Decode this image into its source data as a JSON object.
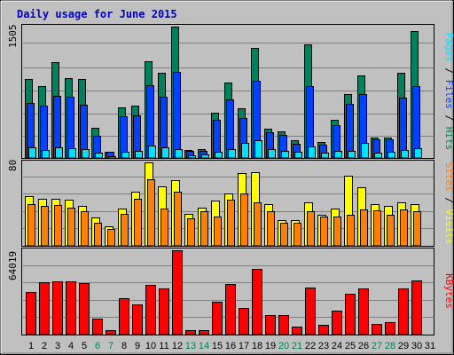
{
  "chart_title": "Daily usage for June 2015",
  "colors": {
    "background": "#c0c0c0",
    "plot_bg": "#c0c0c0",
    "title": "#0000cc",
    "hits": "#00805c",
    "files": "#0040ff",
    "pages": "#00e0ff",
    "visits": "#ffff00",
    "sites": "#ff8000",
    "kbytes": "#ff0000",
    "weekday_label": "#000000",
    "weekend_label": "#00805c"
  },
  "panels": {
    "top": {
      "max_label": "1505",
      "right_labels": [
        {
          "text": "Pages",
          "color": "#00e0ff"
        },
        {
          "text": "Files",
          "color": "#0040ff"
        },
        {
          "text": "Hits",
          "color": "#00805c"
        }
      ],
      "separator": " / "
    },
    "middle": {
      "max_label": "80",
      "right_labels": [
        {
          "text": "Sites",
          "color": "#ff8000"
        },
        {
          "text": "Visits",
          "color": "#ffff00"
        }
      ],
      "separator": " / "
    },
    "bottom": {
      "max_label": "64019",
      "right_labels": [
        {
          "text": "KBytes",
          "color": "#ff0000"
        }
      ],
      "separator": ""
    }
  },
  "chart_data": [
    {
      "type": "bar",
      "categories": [
        "1",
        "2",
        "3",
        "4",
        "5",
        "6",
        "7",
        "8",
        "9",
        "10",
        "11",
        "12",
        "13",
        "14",
        "15",
        "16",
        "17",
        "18",
        "19",
        "20",
        "21",
        "22",
        "23",
        "24",
        "25",
        "26",
        "27",
        "28",
        "29",
        "30",
        "31"
      ],
      "weekend_days": [
        "6",
        "7",
        "13",
        "14",
        "20",
        "21",
        "27",
        "28"
      ],
      "ylim": [
        0,
        1505
      ],
      "series": [
        {
          "name": "Hits",
          "values": [
            910,
            820,
            1100,
            920,
            900,
            350,
            70,
            580,
            600,
            1110,
            980,
            1505,
            90,
            100,
            520,
            860,
            570,
            1260,
            340,
            300,
            200,
            1300,
            180,
            440,
            730,
            950,
            230,
            230,
            980,
            1450,
            0
          ]
        },
        {
          "name": "Files",
          "values": [
            630,
            600,
            710,
            700,
            610,
            250,
            70,
            480,
            490,
            830,
            700,
            990,
            80,
            80,
            440,
            670,
            460,
            880,
            290,
            260,
            160,
            820,
            150,
            380,
            620,
            730,
            210,
            210,
            690,
            820,
            0
          ]
        },
        {
          "name": "Pages",
          "values": [
            120,
            95,
            125,
            115,
            100,
            60,
            20,
            70,
            80,
            145,
            120,
            100,
            30,
            40,
            70,
            100,
            170,
            200,
            100,
            80,
            70,
            130,
            65,
            85,
            80,
            170,
            60,
            70,
            95,
            110,
            0
          ]
        }
      ]
    },
    {
      "type": "bar",
      "categories": [
        "1",
        "2",
        "3",
        "4",
        "5",
        "6",
        "7",
        "8",
        "9",
        "10",
        "11",
        "12",
        "13",
        "14",
        "15",
        "16",
        "17",
        "18",
        "19",
        "20",
        "21",
        "22",
        "23",
        "24",
        "25",
        "26",
        "27",
        "28",
        "29",
        "30",
        "31"
      ],
      "weekend_days": [
        "6",
        "7",
        "13",
        "14",
        "20",
        "21",
        "27",
        "28"
      ],
      "ylim": [
        0,
        80
      ],
      "series": [
        {
          "name": "Visits",
          "values": [
            48,
            45,
            45,
            44,
            38,
            27,
            19,
            36,
            52,
            80,
            57,
            63,
            31,
            37,
            43,
            50,
            70,
            71,
            40,
            25,
            25,
            42,
            30,
            36,
            67,
            56,
            40,
            38,
            42,
            40,
            0
          ]
        },
        {
          "name": "Sites",
          "values": [
            40,
            38,
            39,
            37,
            33,
            22,
            16,
            31,
            45,
            64,
            36,
            52,
            26,
            33,
            28,
            44,
            50,
            42,
            33,
            22,
            22,
            33,
            28,
            28,
            30,
            35,
            34,
            30,
            35,
            33,
            0
          ]
        }
      ]
    },
    {
      "type": "bar",
      "categories": [
        "1",
        "2",
        "3",
        "4",
        "5",
        "6",
        "7",
        "8",
        "9",
        "10",
        "11",
        "12",
        "13",
        "14",
        "15",
        "16",
        "17",
        "18",
        "19",
        "20",
        "21",
        "22",
        "23",
        "24",
        "25",
        "26",
        "27",
        "28",
        "29",
        "30",
        "31"
      ],
      "weekend_days": [
        "6",
        "7",
        "13",
        "14",
        "20",
        "21",
        "27",
        "28"
      ],
      "ylim": [
        0,
        64019
      ],
      "series": [
        {
          "name": "KBytes",
          "values": [
            32300,
            39800,
            40100,
            40200,
            39200,
            12300,
            3200,
            27400,
            22700,
            37600,
            35200,
            64019,
            3500,
            3600,
            25100,
            38500,
            20300,
            49700,
            14700,
            14700,
            6400,
            35500,
            7400,
            17900,
            31300,
            34800,
            7800,
            9200,
            34800,
            41300,
            0
          ]
        }
      ]
    }
  ]
}
